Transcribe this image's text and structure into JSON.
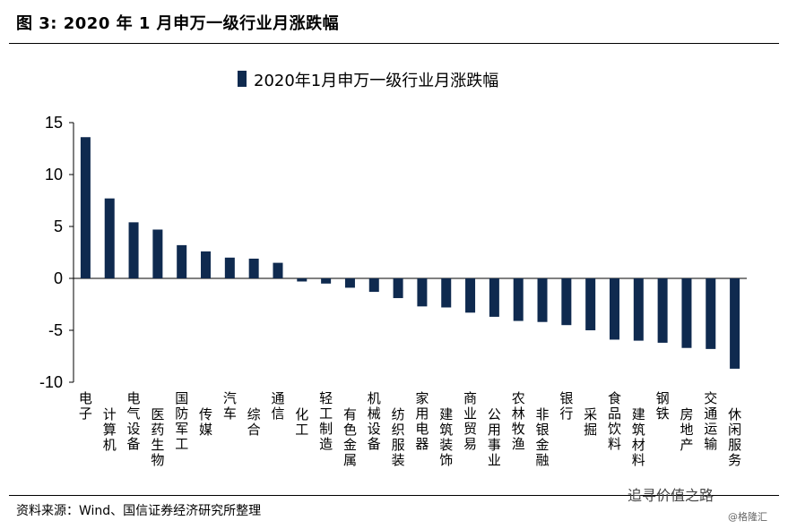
{
  "figure_title": "图  3:  2020 年 1 月申万一级行业月涨跌幅",
  "source_note": "资料来源：Wind、国信证券经济研究所整理",
  "watermark": "追寻价值之路",
  "watermark_sub": "@格隆汇",
  "colors": {
    "bar": "#0f2a4f",
    "axis": "#000000"
  },
  "chart_data": {
    "type": "bar",
    "title": "",
    "xlabel": "",
    "ylabel": "",
    "ylim": [
      -10,
      15
    ],
    "yticks": [
      15,
      10,
      5,
      0,
      -5,
      -10
    ],
    "legend": {
      "position": "top",
      "entries": [
        "2020年1月申万一级行业月涨跌幅"
      ]
    },
    "categories": [
      "电子",
      "计算机",
      "电气设备",
      "医药生物",
      "国防军工",
      "传媒",
      "汽车",
      "综合",
      "通信",
      "化工",
      "轻工制造",
      "有色金属",
      "机械设备",
      "纺织服装",
      "家用电器",
      "建筑装饰",
      "商业贸易",
      "公用事业",
      "农林牧渔",
      "非银金融",
      "银行",
      "采掘",
      "食品饮料",
      "建筑材料",
      "钢铁",
      "房地产",
      "交通运输",
      "休闲服务"
    ],
    "series": [
      {
        "name": "2020年1月申万一级行业月涨跌幅",
        "values": [
          13.6,
          7.7,
          5.4,
          4.7,
          3.2,
          2.6,
          2.0,
          1.9,
          1.5,
          -0.3,
          -0.5,
          -0.9,
          -1.3,
          -1.9,
          -2.7,
          -2.8,
          -3.3,
          -3.7,
          -4.1,
          -4.2,
          -4.5,
          -5.0,
          -5.9,
          -6.0,
          -6.2,
          -6.7,
          -6.8,
          -8.7
        ]
      }
    ]
  }
}
